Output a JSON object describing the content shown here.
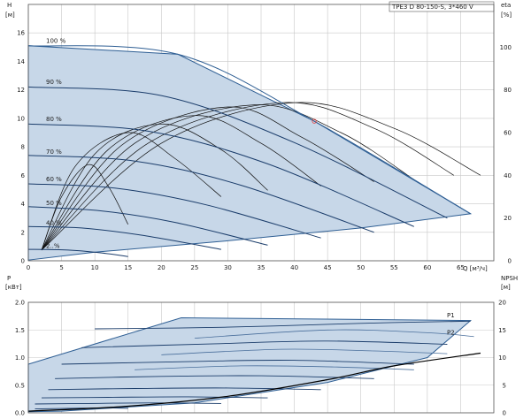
{
  "colors": {
    "envelope_fill": "#c7d7e8",
    "envelope_stroke": "#2f5f94",
    "curve_dark": "#1b3d6b",
    "curve_light": "#4a6f9c",
    "eta_curve": "#111111",
    "power_curve": "#2f5f94",
    "npsh_curve": "#000000",
    "grid": "#c8c8c8",
    "op_point": "#e83b3b"
  },
  "chart_data": [
    {
      "type": "line",
      "title": "TPE3 D 80-150-S, 3*460 V",
      "y_label_top": "H",
      "y_label_unit": "[м]",
      "y2_label_top": "eta",
      "y2_label_unit": "[%]",
      "x_label": "Q [м³/ч]",
      "xlim": [
        0,
        70
      ],
      "ylim": [
        0,
        18
      ],
      "y2lim": [
        0,
        120
      ],
      "x_ticks": [
        "0",
        "5",
        "10",
        "15",
        "20",
        "25",
        "30",
        "35",
        "40",
        "45",
        "50",
        "55",
        "60",
        "65"
      ],
      "y_ticks": [
        "0",
        "2",
        "4",
        "6",
        "8",
        "10",
        "12",
        "14",
        "16"
      ],
      "y2_ticks": [
        "0",
        "20",
        "40",
        "60",
        "80",
        "100"
      ],
      "speed_labels": [
        "100 %",
        "90 %",
        "80 %",
        "70 %",
        "60 %",
        "50 %",
        "40 %",
        "2..%"
      ],
      "speed_label_y": [
        15.3,
        12.4,
        9.8,
        7.5,
        5.6,
        3.9,
        2.5,
        0.9
      ],
      "speed_curves": [
        {
          "name": "100 %",
          "x": [
            0,
            22.5,
            43,
            66.5
          ],
          "y": [
            15.1,
            14.5,
            9.8,
            3.3
          ]
        },
        {
          "name": "90 %",
          "x": [
            0,
            20,
            40,
            63
          ],
          "y": [
            12.2,
            11.6,
            8.3,
            3.0
          ]
        },
        {
          "name": "80 %",
          "x": [
            0,
            18,
            36,
            58
          ],
          "y": [
            9.6,
            9.1,
            6.8,
            2.4
          ]
        },
        {
          "name": "70 %",
          "x": [
            0,
            16,
            32,
            52
          ],
          "y": [
            7.4,
            7.0,
            5.3,
            2.0
          ]
        },
        {
          "name": "60 %",
          "x": [
            0,
            13,
            27,
            44
          ],
          "y": [
            5.4,
            5.1,
            3.9,
            1.6
          ]
        },
        {
          "name": "50 %",
          "x": [
            0,
            11,
            22,
            36
          ],
          "y": [
            3.8,
            3.5,
            2.7,
            1.1
          ]
        },
        {
          "name": "40 %",
          "x": [
            0,
            8,
            17,
            29
          ],
          "y": [
            2.4,
            2.3,
            1.8,
            0.8
          ]
        },
        {
          "name": "2..%",
          "x": [
            0,
            6,
            11,
            15
          ],
          "y": [
            0.8,
            0.75,
            0.55,
            0.3
          ]
        }
      ],
      "envelope": {
        "x": [
          0,
          0,
          22.5,
          43,
          66.5,
          50,
          30,
          10,
          0
        ],
        "y": [
          0.05,
          15.1,
          14.5,
          9.8,
          3.3,
          2.3,
          1.4,
          0.6,
          0.05
        ]
      },
      "eta_curves": [
        {
          "name": "eta-100",
          "x": [
            2,
            20,
            40,
            55,
            68
          ],
          "y": [
            5,
            55,
            74,
            62,
            40
          ]
        },
        {
          "name": "eta-90",
          "x": [
            2,
            18,
            38,
            52,
            64
          ],
          "y": [
            5,
            55,
            74,
            62,
            40
          ]
        },
        {
          "name": "eta-80",
          "x": [
            2,
            16,
            34,
            47,
            58
          ],
          "y": [
            5,
            55,
            73,
            60,
            38
          ]
        },
        {
          "name": "eta-70",
          "x": [
            2,
            14,
            30,
            41,
            52
          ],
          "y": [
            5,
            54,
            72,
            58,
            37
          ]
        },
        {
          "name": "eta-60",
          "x": [
            2,
            12,
            25,
            35,
            44
          ],
          "y": [
            5,
            52,
            68,
            55,
            35
          ]
        },
        {
          "name": "eta-50",
          "x": [
            2,
            10,
            20,
            29,
            36
          ],
          "y": [
            5,
            50,
            64,
            52,
            33
          ]
        },
        {
          "name": "eta-40",
          "x": [
            2,
            7,
            15,
            22,
            29
          ],
          "y": [
            5,
            44,
            60,
            48,
            30
          ]
        },
        {
          "name": "eta-30",
          "x": [
            2,
            5,
            9,
            12,
            15
          ],
          "y": [
            5,
            30,
            45,
            35,
            17
          ]
        }
      ],
      "operating_point": {
        "x": 43,
        "y": 9.8
      }
    },
    {
      "type": "line",
      "y_label_top": "P",
      "y_label_unit": "[кВт]",
      "y2_label_top": "NPSH",
      "y2_label_unit": "[м]",
      "xlim": [
        0,
        70
      ],
      "ylim": [
        0,
        2.0
      ],
      "y2lim": [
        0,
        20
      ],
      "y_ticks": [
        "0.0",
        "0.5",
        "1.0",
        "1.5",
        "2.0"
      ],
      "y2_ticks": [
        "0",
        "5",
        "10",
        "15",
        "20"
      ],
      "legend_labels": [
        "P1",
        "P2"
      ],
      "legend_label_y": [
        1.73,
        1.42
      ],
      "p1_curves": [
        {
          "name": "P1-100",
          "x": [
            10,
            30,
            50,
            66.5
          ],
          "y": [
            1.52,
            1.55,
            1.62,
            1.66
          ]
        },
        {
          "name": "P1-90",
          "x": [
            8,
            28,
            45,
            63
          ],
          "y": [
            1.18,
            1.25,
            1.3,
            1.24
          ]
        },
        {
          "name": "P1-80",
          "x": [
            5,
            25,
            40,
            58
          ],
          "y": [
            0.88,
            0.93,
            0.95,
            0.88
          ]
        },
        {
          "name": "P1-70",
          "x": [
            4,
            20,
            35,
            52
          ],
          "y": [
            0.62,
            0.66,
            0.67,
            0.62
          ]
        },
        {
          "name": "P1-60",
          "x": [
            3,
            16,
            30,
            44
          ],
          "y": [
            0.42,
            0.44,
            0.45,
            0.42
          ]
        },
        {
          "name": "P1-50",
          "x": [
            2,
            12,
            24,
            36
          ],
          "y": [
            0.27,
            0.28,
            0.29,
            0.27
          ]
        },
        {
          "name": "P1-40",
          "x": [
            1,
            9,
            18,
            29
          ],
          "y": [
            0.16,
            0.17,
            0.18,
            0.17
          ]
        },
        {
          "name": "P1-30",
          "x": [
            1,
            6,
            11,
            15
          ],
          "y": [
            0.07,
            0.08,
            0.09,
            0.08
          ]
        }
      ],
      "p2_curves": [
        {
          "name": "P2-100",
          "x": [
            25,
            45,
            60,
            67
          ],
          "y": [
            1.35,
            1.5,
            1.45,
            1.38
          ]
        },
        {
          "name": "P2-90",
          "x": [
            20,
            38,
            52,
            63
          ],
          "y": [
            1.05,
            1.15,
            1.12,
            1.07
          ]
        },
        {
          "name": "P2-80",
          "x": [
            16,
            32,
            46,
            58
          ],
          "y": [
            0.78,
            0.85,
            0.83,
            0.78
          ]
        }
      ],
      "envelope": {
        "x": [
          0,
          0,
          23,
          66.5,
          60,
          45,
          25,
          5,
          0
        ],
        "y": [
          0.02,
          0.88,
          1.72,
          1.67,
          1.0,
          0.55,
          0.18,
          0.03,
          0.02
        ]
      },
      "npsh_curve": {
        "name": "NPSH",
        "x": [
          0,
          15,
          30,
          45,
          55,
          68
        ],
        "y": [
          0.3,
          1.2,
          3.0,
          6.0,
          8.5,
          10.8
        ]
      }
    }
  ]
}
